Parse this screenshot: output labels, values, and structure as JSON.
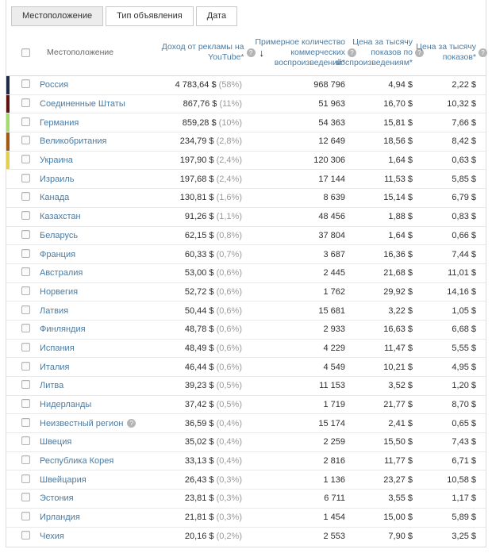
{
  "tabs": [
    {
      "label": "Местоположение",
      "active": true
    },
    {
      "label": "Тип объявления",
      "active": false
    },
    {
      "label": "Дата",
      "active": false
    }
  ],
  "icons": {
    "help_icon": "?",
    "sort_down_icon": "↓"
  },
  "colors": {
    "link_blue": "#4a7ba3",
    "percent_gray": "#9a9a9a",
    "series": [
      "#1f2a47",
      "#5e1310",
      "#a5da6e",
      "#a25a12",
      "#e3d04e"
    ]
  },
  "table": {
    "columns": {
      "location": "Местоположение",
      "revenue": "Доход от рекламы на YouTube*",
      "plays": "Примерное количество коммерческих воспроизведений*",
      "cpm_plays": "Цена за тысячу показов по воспроизведениям*",
      "cpm": "Цена за тысячу показов*"
    },
    "sorted_by": "revenue",
    "rows": [
      {
        "location": "Россия",
        "color": "#1f2a47",
        "revenue": "4 783,64 $",
        "share": "(58%)",
        "plays": "968 796",
        "cpm_plays": "4,94 $",
        "cpm": "2,22 $"
      },
      {
        "location": "Соединенные Штаты",
        "color": "#5e1310",
        "revenue": "867,76 $",
        "share": "(11%)",
        "plays": "51 963",
        "cpm_plays": "16,70 $",
        "cpm": "10,32 $"
      },
      {
        "location": "Германия",
        "color": "#a5da6e",
        "revenue": "859,28 $",
        "share": "(10%)",
        "plays": "54 363",
        "cpm_plays": "15,81 $",
        "cpm": "7,66 $"
      },
      {
        "location": "Великобритания",
        "color": "#a25a12",
        "revenue": "234,79 $",
        "share": "(2,8%)",
        "plays": "12 649",
        "cpm_plays": "18,56 $",
        "cpm": "8,42 $"
      },
      {
        "location": "Украина",
        "color": "#e3d04e",
        "revenue": "197,90 $",
        "share": "(2,4%)",
        "plays": "120 306",
        "cpm_plays": "1,64 $",
        "cpm": "0,63 $"
      },
      {
        "location": "Израиль",
        "revenue": "197,68 $",
        "share": "(2,4%)",
        "plays": "17 144",
        "cpm_plays": "11,53 $",
        "cpm": "5,85 $"
      },
      {
        "location": "Канада",
        "revenue": "130,81 $",
        "share": "(1,6%)",
        "plays": "8 639",
        "cpm_plays": "15,14 $",
        "cpm": "6,79 $"
      },
      {
        "location": "Казахстан",
        "revenue": "91,26 $",
        "share": "(1,1%)",
        "plays": "48 456",
        "cpm_plays": "1,88 $",
        "cpm": "0,83 $"
      },
      {
        "location": "Беларусь",
        "revenue": "62,15 $",
        "share": "(0,8%)",
        "plays": "37 804",
        "cpm_plays": "1,64 $",
        "cpm": "0,66 $"
      },
      {
        "location": "Франция",
        "revenue": "60,33 $",
        "share": "(0,7%)",
        "plays": "3 687",
        "cpm_plays": "16,36 $",
        "cpm": "7,44 $"
      },
      {
        "location": "Австралия",
        "revenue": "53,00 $",
        "share": "(0,6%)",
        "plays": "2 445",
        "cpm_plays": "21,68 $",
        "cpm": "11,01 $"
      },
      {
        "location": "Норвегия",
        "revenue": "52,72 $",
        "share": "(0,6%)",
        "plays": "1 762",
        "cpm_plays": "29,92 $",
        "cpm": "14,16 $"
      },
      {
        "location": "Латвия",
        "revenue": "50,44 $",
        "share": "(0,6%)",
        "plays": "15 681",
        "cpm_plays": "3,22 $",
        "cpm": "1,05 $"
      },
      {
        "location": "Финляндия",
        "revenue": "48,78 $",
        "share": "(0,6%)",
        "plays": "2 933",
        "cpm_plays": "16,63 $",
        "cpm": "6,68 $"
      },
      {
        "location": "Испания",
        "revenue": "48,49 $",
        "share": "(0,6%)",
        "plays": "4 229",
        "cpm_plays": "11,47 $",
        "cpm": "5,55 $"
      },
      {
        "location": "Италия",
        "revenue": "46,44 $",
        "share": "(0,6%)",
        "plays": "4 549",
        "cpm_plays": "10,21 $",
        "cpm": "4,95 $"
      },
      {
        "location": "Литва",
        "revenue": "39,23 $",
        "share": "(0,5%)",
        "plays": "11 153",
        "cpm_plays": "3,52 $",
        "cpm": "1,20 $"
      },
      {
        "location": "Нидерланды",
        "revenue": "37,42 $",
        "share": "(0,5%)",
        "plays": "1 719",
        "cpm_plays": "21,77 $",
        "cpm": "8,70 $"
      },
      {
        "location": "Неизвестный регион",
        "help": true,
        "revenue": "36,59 $",
        "share": "(0,4%)",
        "plays": "15 174",
        "cpm_plays": "2,41 $",
        "cpm": "0,65 $"
      },
      {
        "location": "Швеция",
        "revenue": "35,02 $",
        "share": "(0,4%)",
        "plays": "2 259",
        "cpm_plays": "15,50 $",
        "cpm": "7,43 $"
      },
      {
        "location": "Республика Корея",
        "revenue": "33,13 $",
        "share": "(0,4%)",
        "plays": "2 816",
        "cpm_plays": "11,77 $",
        "cpm": "6,71 $"
      },
      {
        "location": "Швейцария",
        "revenue": "26,43 $",
        "share": "(0,3%)",
        "plays": "1 136",
        "cpm_plays": "23,27 $",
        "cpm": "10,58 $"
      },
      {
        "location": "Эстония",
        "revenue": "23,81 $",
        "share": "(0,3%)",
        "plays": "6 711",
        "cpm_plays": "3,55 $",
        "cpm": "1,17 $"
      },
      {
        "location": "Ирландия",
        "revenue": "21,81 $",
        "share": "(0,3%)",
        "plays": "1 454",
        "cpm_plays": "15,00 $",
        "cpm": "5,89 $"
      },
      {
        "location": "Чехия",
        "revenue": "20,16 $",
        "share": "(0,2%)",
        "plays": "2 553",
        "cpm_plays": "7,90 $",
        "cpm": "3,25 $"
      }
    ]
  }
}
